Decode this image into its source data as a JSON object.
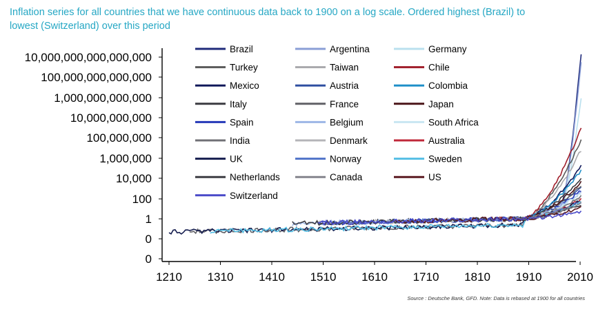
{
  "chart_data": {
    "type": "line",
    "title": "Inflation series for all countries that we have continuous data back to 1900 on a log scale. Ordered highest (Brazil) to lowest (Switzerland) over this period",
    "source_note": "Source : Deutsche Bank, GFD. Note: Data is rebased at 1900 for all countries",
    "y_scale": "log",
    "y_ticks": [
      "10,000,000,000,000,000",
      "100,000,000,000,000",
      "1,000,000,000,000",
      "10,000,000,000",
      "100,000,000",
      "1,000,000",
      "10,000",
      "100",
      "1",
      "0",
      "0"
    ],
    "x_ticks": [
      "1210",
      "1310",
      "1410",
      "1510",
      "1610",
      "1710",
      "1810",
      "1910",
      "2010"
    ],
    "xlim": [
      1210,
      2015
    ],
    "grid": false,
    "legend_position": "top",
    "series": [
      {
        "name": "Brazil",
        "color": "#1f2a7a",
        "start": 1900,
        "end_log10": 16.3
      },
      {
        "name": "Argentina",
        "color": "#8a9ed6",
        "start": 1900,
        "end_log10": 15.4
      },
      {
        "name": "Germany",
        "color": "#b9e0ee",
        "start": 1900,
        "end_log10": 12.0
      },
      {
        "name": "Turkey",
        "color": "#5a5a5a",
        "start": 1900,
        "end_log10": 7.8
      },
      {
        "name": "Taiwan",
        "color": "#a8a8ac",
        "start": 1900,
        "end_log10": 6.8
      },
      {
        "name": "Chile",
        "color": "#a01e2a",
        "start": 1900,
        "end_log10": 9.0
      },
      {
        "name": "Mexico",
        "color": "#10185a",
        "start": 1900,
        "end_log10": 5.2
      },
      {
        "name": "Austria",
        "color": "#2f4fa0",
        "start": 1900,
        "end_log10": 3.2
      },
      {
        "name": "Colombia",
        "color": "#1f8fc8",
        "start": 1900,
        "end_log10": 4.8
      },
      {
        "name": "Italy",
        "color": "#3a3a40",
        "start": 1500,
        "end_log10": 4.0
      },
      {
        "name": "France",
        "color": "#606066",
        "start": 1250,
        "end_log10": 3.3
      },
      {
        "name": "Japan",
        "color": "#4a1418",
        "start": 1900,
        "end_log10": 3.6
      },
      {
        "name": "Spain",
        "color": "#2438b8",
        "start": 1500,
        "end_log10": 2.8
      },
      {
        "name": "Belgium",
        "color": "#9cb6e6",
        "start": 1450,
        "end_log10": 2.6
      },
      {
        "name": "South Africa",
        "color": "#c8e6f2",
        "start": 1900,
        "end_log10": 2.5
      },
      {
        "name": "India",
        "color": "#707076",
        "start": 1870,
        "end_log10": 2.2
      },
      {
        "name": "Denmark",
        "color": "#b4b4b8",
        "start": 1500,
        "end_log10": 2.0
      },
      {
        "name": "Australia",
        "color": "#c0283a",
        "start": 1850,
        "end_log10": 1.9
      },
      {
        "name": "UK",
        "color": "#141c4e",
        "start": 1210,
        "end_log10": 1.8
      },
      {
        "name": "Norway",
        "color": "#4f72c8",
        "start": 1520,
        "end_log10": 1.7
      },
      {
        "name": "Sweden",
        "color": "#54bee4",
        "start": 1290,
        "end_log10": 1.6
      },
      {
        "name": "Netherlands",
        "color": "#3c3c42",
        "start": 1450,
        "end_log10": 1.4
      },
      {
        "name": "Canada",
        "color": "#84848c",
        "start": 1870,
        "end_log10": 1.5
      },
      {
        "name": "US",
        "color": "#5a1820",
        "start": 1650,
        "end_log10": 1.1
      },
      {
        "name": "Switzerland",
        "color": "#4848c8",
        "start": 1500,
        "end_log10": 0.7
      }
    ]
  }
}
